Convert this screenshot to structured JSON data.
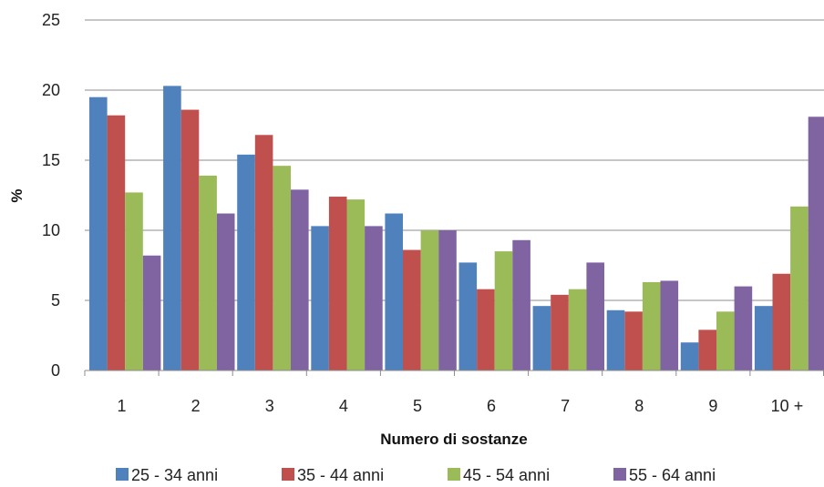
{
  "chart_data": {
    "type": "bar",
    "xlabel": "Numero di sostanze",
    "ylabel": "%",
    "ylim": [
      0,
      25
    ],
    "yticks": [
      "0",
      "5",
      "10",
      "15",
      "20",
      "25"
    ],
    "grid": true,
    "legend_position": "bottom",
    "categories": [
      "1",
      "2",
      "3",
      "4",
      "5",
      "6",
      "7",
      "8",
      "9",
      "10 +"
    ],
    "series": [
      {
        "name": "25 - 34 anni",
        "color": "#4F81BD",
        "values": [
          19.5,
          20.3,
          15.4,
          10.3,
          11.2,
          7.7,
          4.6,
          4.3,
          2.0,
          4.6
        ]
      },
      {
        "name": "35 - 44 anni",
        "color": "#C0504D",
        "values": [
          18.2,
          18.6,
          16.8,
          12.4,
          8.6,
          5.8,
          5.4,
          4.2,
          2.9,
          6.9
        ]
      },
      {
        "name": "45 - 54 anni",
        "color": "#9BBB59",
        "values": [
          12.7,
          13.9,
          14.6,
          12.2,
          10.0,
          8.5,
          5.8,
          6.3,
          4.2,
          11.7
        ]
      },
      {
        "name": "55 - 64 anni",
        "color": "#8064A2",
        "values": [
          8.2,
          11.2,
          12.9,
          10.3,
          10.0,
          9.3,
          7.7,
          6.4,
          6.0,
          18.1
        ]
      }
    ]
  }
}
